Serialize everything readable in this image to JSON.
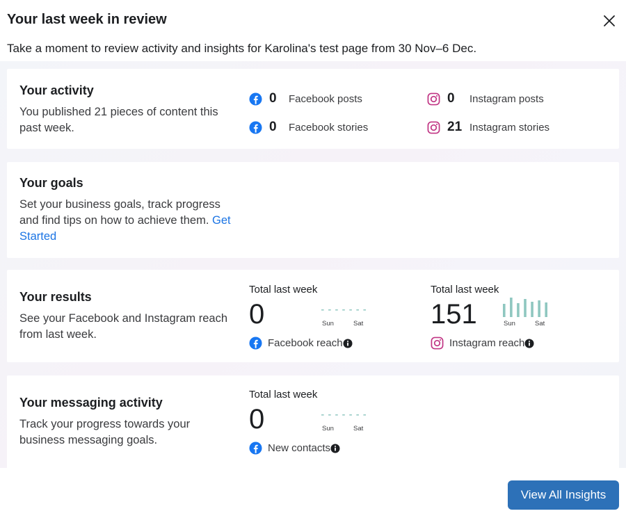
{
  "dialog": {
    "title": "Your last week in review",
    "subtitle": "Take a moment to review activity and insights for Karolina's test page from 30 Nov–6 Dec."
  },
  "activity": {
    "title": "Your activity",
    "description": "You published 21 pieces of content this past week.",
    "stats": [
      {
        "icon": "facebook-icon",
        "count": "0",
        "label": "Facebook posts"
      },
      {
        "icon": "facebook-icon",
        "count": "0",
        "label": "Facebook stories"
      },
      {
        "icon": "instagram-icon",
        "count": "0",
        "label": "Instagram posts"
      },
      {
        "icon": "instagram-icon",
        "count": "21",
        "label": "Instagram stories"
      }
    ]
  },
  "goals": {
    "title": "Your goals",
    "description": "Set your business goals, track progress and find tips on how to achieve them.",
    "link": "Get Started"
  },
  "results": {
    "title": "Your results",
    "description": "See your Facebook and Instagram reach from last week.",
    "metrics": [
      {
        "caption": "Total last week",
        "value": "0",
        "start_day": "Sun",
        "end_day": "Sat",
        "icon": "facebook-icon",
        "label": "Facebook reach",
        "daily": [
          0,
          0,
          0,
          0,
          0,
          0,
          0
        ]
      },
      {
        "caption": "Total last week",
        "value": "151",
        "start_day": "Sun",
        "end_day": "Sat",
        "icon": "instagram-icon",
        "label": "Instagram reach",
        "daily": [
          19,
          28,
          20,
          26,
          22,
          24,
          21
        ]
      }
    ]
  },
  "messaging": {
    "title": "Your messaging activity",
    "description": "Track your progress towards your business messaging goals.",
    "metric": {
      "caption": "Total last week",
      "value": "0",
      "start_day": "Sun",
      "end_day": "Sat",
      "icon": "facebook-icon",
      "label": "New contacts",
      "daily": [
        0,
        0,
        0,
        0,
        0,
        0,
        0
      ]
    }
  },
  "footer": {
    "button_label": "View All Insights"
  },
  "colors": {
    "facebook": "#1877f2",
    "instagram": "#c13584",
    "spark": "#8fc7c0",
    "primary_button": "#2d71b8",
    "link": "#1b74e4"
  }
}
